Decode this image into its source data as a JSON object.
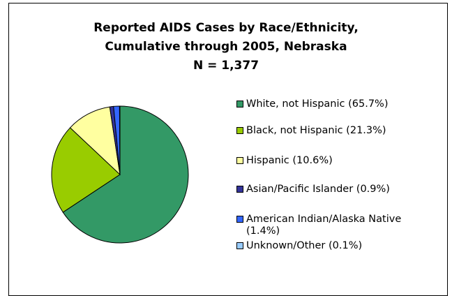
{
  "chart_data": {
    "type": "pie",
    "title_lines": [
      "Reported AIDS Cases by Race/Ethnicity,",
      "Cumulative through 2005, Nebraska",
      "N = 1,377"
    ],
    "slices": [
      {
        "label": "White, not Hispanic (65.7%)",
        "value": 65.7,
        "color": "#339966"
      },
      {
        "label": "Black, not Hispanic (21.3%)",
        "value": 21.3,
        "color": "#99cc00"
      },
      {
        "label": "Hispanic (10.6%)",
        "value": 10.6,
        "color": "#ffffa0"
      },
      {
        "label": "Asian/Pacific Islander (0.9%)",
        "value": 0.9,
        "color": "#333399"
      },
      {
        "label": "American Indian/Alaska Native (1.4%)",
        "value": 1.4,
        "color": "#3366ff"
      },
      {
        "label": "Unknown/Other (0.1%)",
        "value": 0.1,
        "color": "#99ccff"
      }
    ],
    "legend_position": "right"
  }
}
